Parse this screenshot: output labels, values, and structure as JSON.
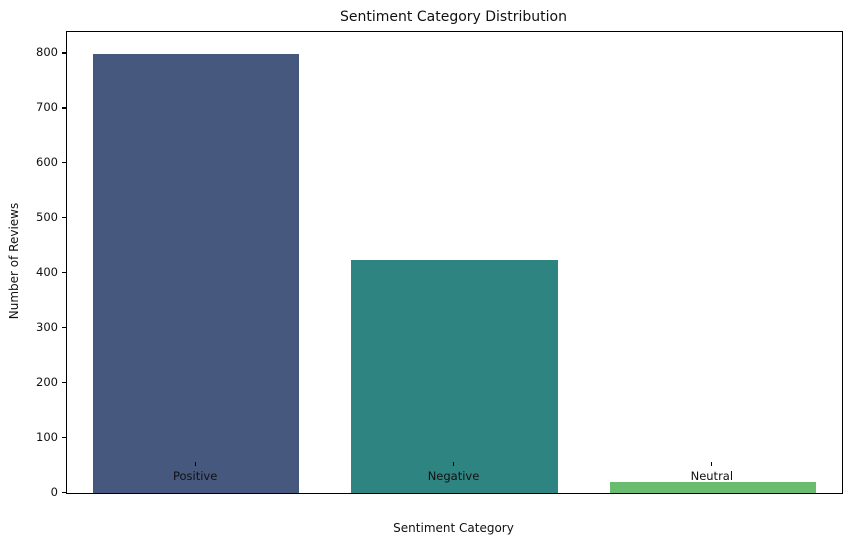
{
  "chart_data": {
    "type": "bar",
    "title": "Sentiment Category Distribution",
    "xlabel": "Sentiment Category",
    "ylabel": "Number of Reviews",
    "categories": [
      "Positive",
      "Negative",
      "Neutral"
    ],
    "values": [
      800,
      425,
      20
    ],
    "bar_colors": [
      "#46587e",
      "#2e8480",
      "#6abd6e"
    ],
    "ylim": [
      0,
      840
    ],
    "yticks": [
      0,
      100,
      200,
      300,
      400,
      500,
      600,
      700,
      800
    ],
    "bar_relative_width": 0.8,
    "grid": false,
    "legend": null,
    "background_color": "#ffffff",
    "axis_color": "#000000",
    "text_color": "#111111"
  }
}
